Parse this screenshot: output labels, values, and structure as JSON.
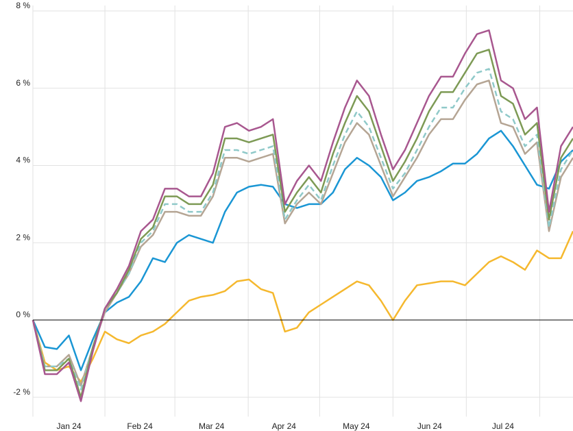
{
  "chart_data": {
    "type": "line",
    "x": [
      0,
      1,
      2,
      3,
      4,
      5,
      6,
      7,
      8,
      9,
      10,
      11,
      12,
      13,
      14,
      15,
      16,
      17,
      18,
      19,
      20,
      21,
      22,
      23,
      24,
      25,
      26,
      27,
      28,
      29,
      30,
      31,
      32,
      33,
      34,
      35,
      36,
      37,
      38,
      39,
      40,
      41,
      42,
      43,
      44,
      45
    ],
    "xlim": [
      0,
      45
    ],
    "xgrid": [
      0,
      6,
      11.83,
      17.94,
      23.89,
      30,
      36.11,
      42.23
    ],
    "months": [
      "Jan 24",
      "Feb 24",
      "Mar 24",
      "Apr 24",
      "May 24",
      "Jun 24",
      "Jul 24"
    ],
    "ylim": [
      -2.5,
      8
    ],
    "yticks": [
      {
        "value": -2,
        "label": "-2 %"
      },
      {
        "value": 0,
        "label": "0 %"
      },
      {
        "value": 2,
        "label": "2 %"
      },
      {
        "value": 4,
        "label": "4 %"
      },
      {
        "value": 6,
        "label": "6 %"
      },
      {
        "value": 8,
        "label": "8 %"
      }
    ],
    "grid": true,
    "series": [
      {
        "color": "#f5b82e",
        "dash": false,
        "values": [
          0,
          -1.1,
          -1.3,
          -1.2,
          -1.6,
          -1.0,
          -0.3,
          -0.5,
          -0.6,
          -0.4,
          -0.3,
          -0.1,
          0.2,
          0.5,
          0.6,
          0.65,
          0.75,
          1.0,
          1.05,
          0.8,
          0.7,
          -0.3,
          -0.2,
          0.2,
          0.4,
          0.6,
          0.8,
          1.0,
          0.9,
          0.5,
          0.0,
          0.5,
          0.9,
          0.95,
          1.0,
          1.0,
          0.9,
          1.2,
          1.5,
          1.65,
          1.5,
          1.3,
          1.8,
          1.6,
          1.6,
          2.3
        ]
      },
      {
        "color": "#1a96d4",
        "dash": false,
        "values": [
          0,
          -0.7,
          -0.75,
          -0.4,
          -1.3,
          -0.5,
          0.2,
          0.45,
          0.6,
          1.0,
          1.6,
          1.5,
          2.0,
          2.2,
          2.1,
          2.0,
          2.8,
          3.3,
          3.45,
          3.5,
          3.45,
          3.0,
          2.9,
          3.0,
          3.0,
          3.3,
          3.9,
          4.2,
          4.0,
          3.7,
          3.1,
          3.3,
          3.6,
          3.7,
          3.85,
          4.05,
          4.05,
          4.3,
          4.7,
          4.9,
          4.5,
          4.0,
          3.5,
          3.4,
          4.1,
          4.4
        ]
      },
      {
        "color": "#b5a594",
        "dash": false,
        "values": [
          0,
          -1.2,
          -1.2,
          -0.9,
          -1.7,
          -0.7,
          0.2,
          0.7,
          1.2,
          1.9,
          2.2,
          2.8,
          2.8,
          2.7,
          2.7,
          3.2,
          4.2,
          4.2,
          4.1,
          4.2,
          4.3,
          2.5,
          3.0,
          3.3,
          3.0,
          3.8,
          4.6,
          5.1,
          4.8,
          4.0,
          3.2,
          3.7,
          4.2,
          4.8,
          5.2,
          5.2,
          5.7,
          6.1,
          6.2,
          5.1,
          5.0,
          4.3,
          4.6,
          2.3,
          3.7,
          4.2
        ]
      },
      {
        "color": "#8fc9c9",
        "dash": true,
        "values": [
          0,
          -1.2,
          -1.2,
          -1.0,
          -1.8,
          -0.7,
          0.3,
          0.7,
          1.2,
          2.0,
          2.3,
          3.0,
          3.0,
          2.8,
          2.8,
          3.3,
          4.4,
          4.4,
          4.3,
          4.4,
          4.5,
          2.6,
          3.1,
          3.5,
          3.1,
          4.0,
          4.8,
          5.4,
          5.0,
          4.2,
          3.4,
          3.8,
          4.4,
          5.0,
          5.5,
          5.5,
          6.0,
          6.4,
          6.5,
          5.4,
          5.2,
          4.5,
          4.8,
          2.4,
          3.9,
          4.4
        ]
      },
      {
        "color": "#7d9a55",
        "dash": false,
        "values": [
          0,
          -1.3,
          -1.3,
          -1.0,
          -2.0,
          -0.7,
          0.3,
          0.7,
          1.3,
          2.1,
          2.4,
          3.2,
          3.2,
          3.0,
          3.0,
          3.5,
          4.7,
          4.7,
          4.6,
          4.7,
          4.8,
          2.8,
          3.3,
          3.7,
          3.3,
          4.3,
          5.1,
          5.8,
          5.4,
          4.5,
          3.6,
          4.1,
          4.7,
          5.4,
          5.9,
          5.9,
          6.4,
          6.9,
          7.0,
          5.8,
          5.6,
          4.8,
          5.1,
          2.6,
          4.2,
          4.7
        ]
      },
      {
        "color": "#a8578f",
        "dash": false,
        "values": [
          0,
          -1.4,
          -1.4,
          -1.1,
          -2.1,
          -0.8,
          0.3,
          0.8,
          1.4,
          2.3,
          2.6,
          3.4,
          3.4,
          3.2,
          3.2,
          3.8,
          5.0,
          5.1,
          4.9,
          5.0,
          5.2,
          3.0,
          3.6,
          4.0,
          3.6,
          4.6,
          5.5,
          6.2,
          5.8,
          4.8,
          3.9,
          4.4,
          5.1,
          5.8,
          6.3,
          6.3,
          6.9,
          7.4,
          7.5,
          6.2,
          6.0,
          5.2,
          5.5,
          2.8,
          4.5,
          5.0
        ]
      }
    ]
  }
}
